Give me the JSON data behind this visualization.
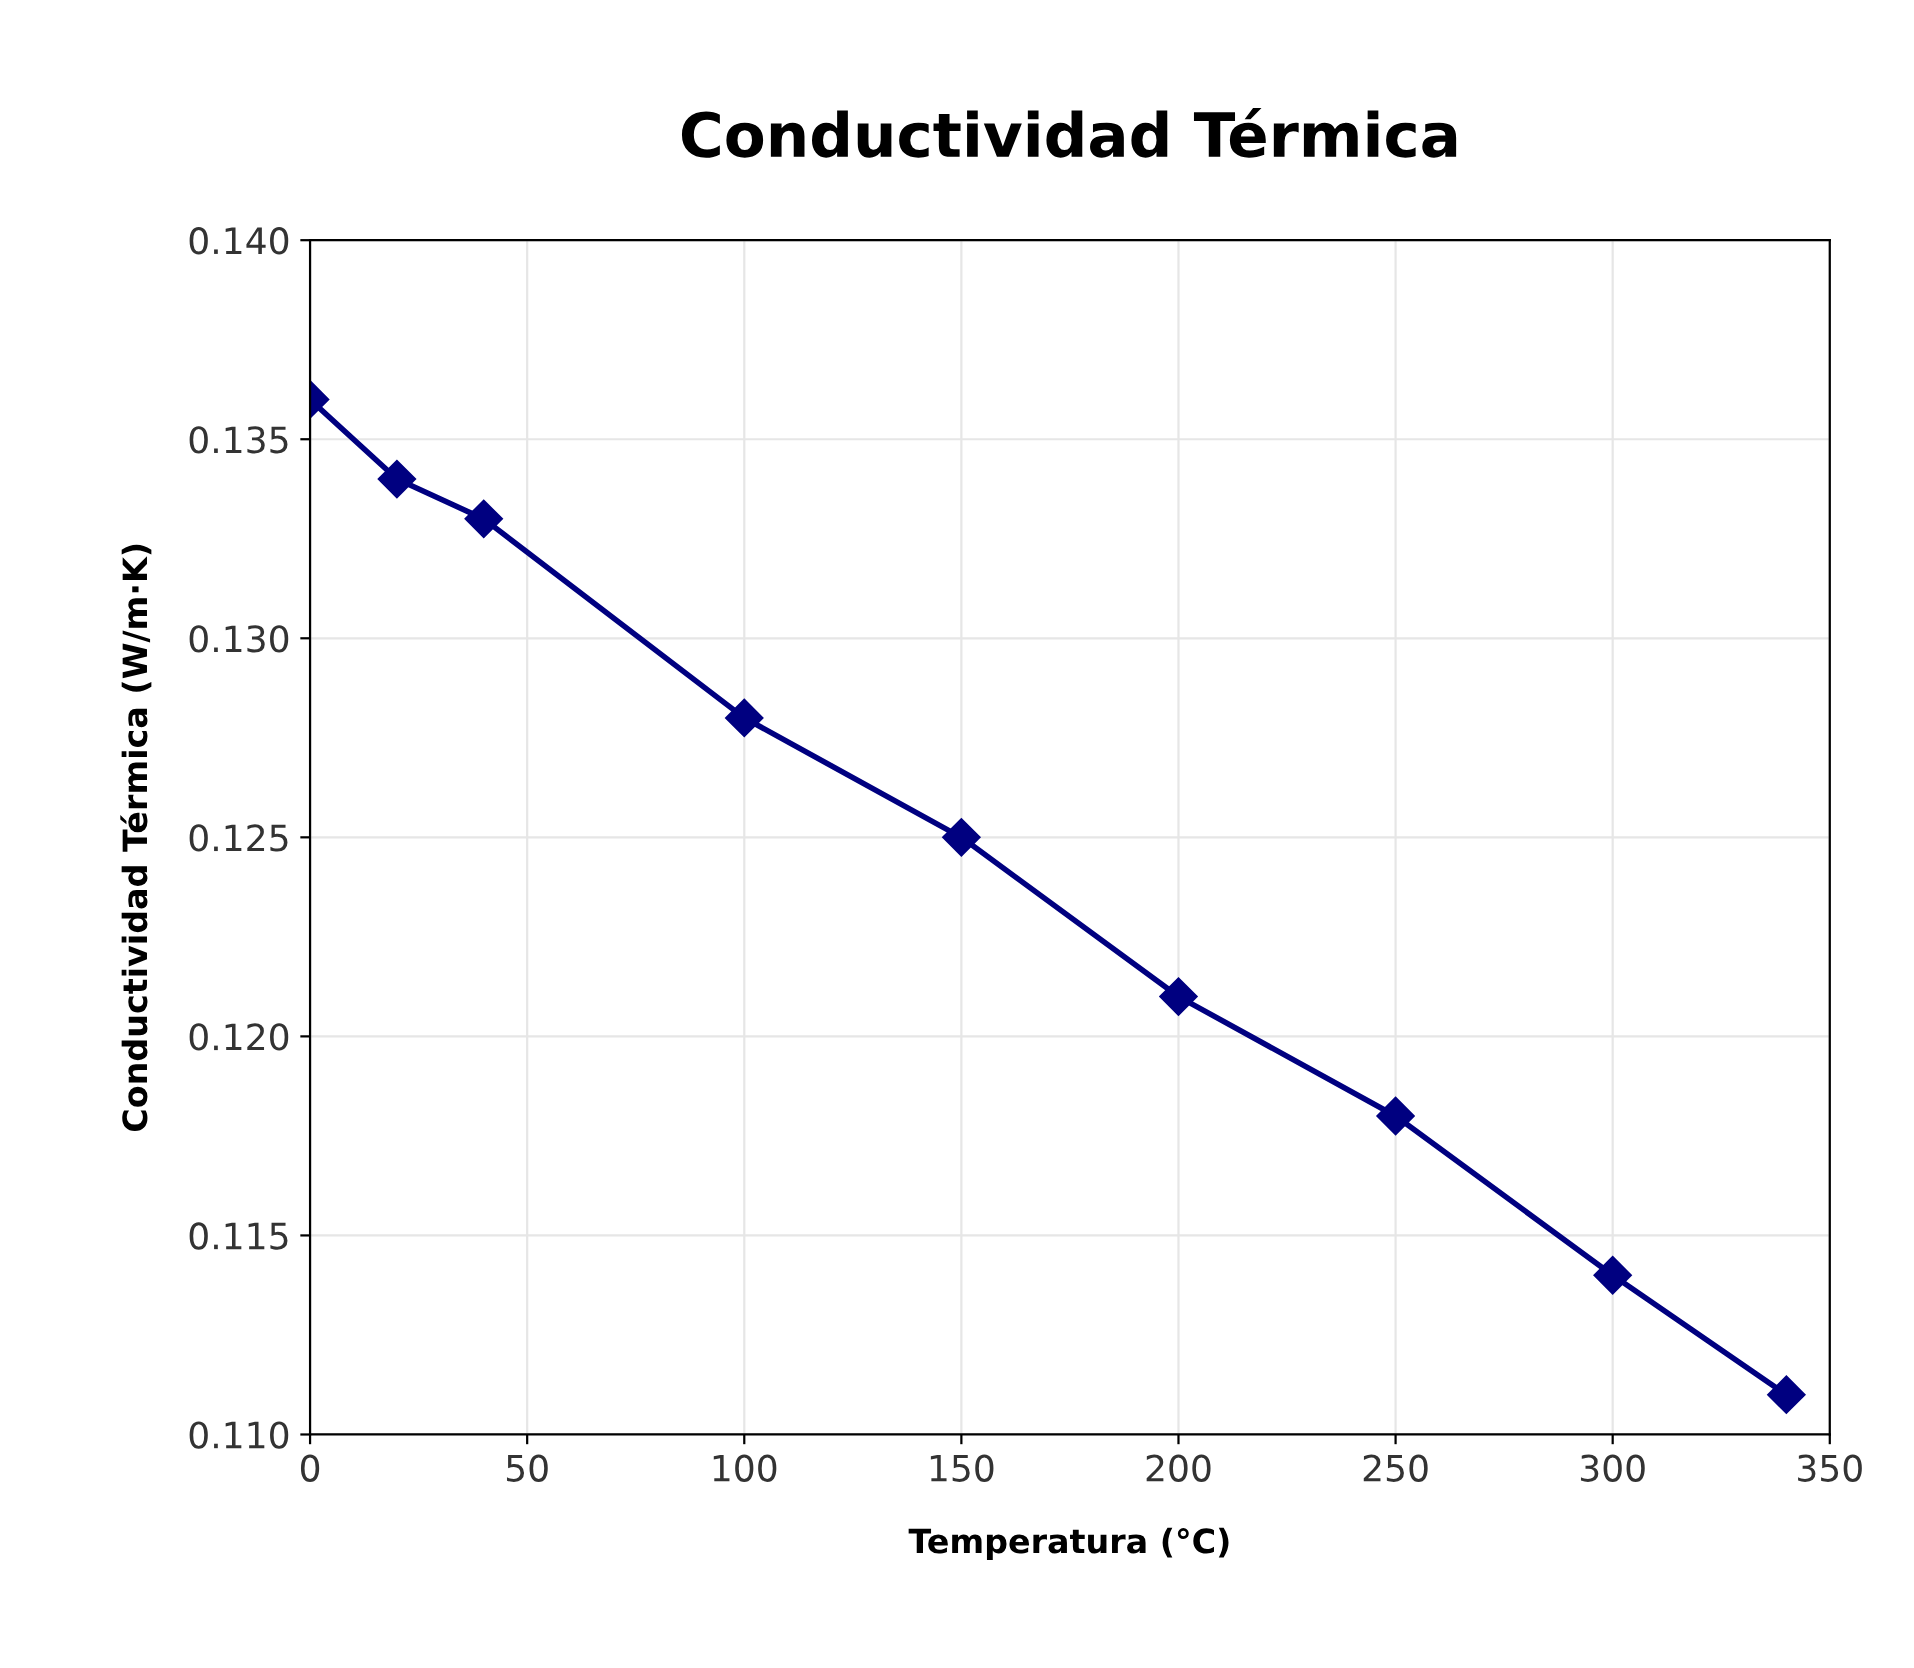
{
  "chart_data": {
    "type": "line",
    "title": "Conductividad Térmica",
    "xlabel": "Temperatura (°C)",
    "ylabel": "Conductividad Térmica (W/m·K)",
    "x": [
      0,
      20,
      40,
      100,
      150,
      200,
      250,
      300,
      340
    ],
    "series": [
      {
        "color": "#000080",
        "values": [
          0.136,
          0.134,
          0.133,
          0.128,
          0.125,
          0.121,
          0.118,
          0.114,
          0.111
        ]
      }
    ],
    "xlim": [
      0,
      350
    ],
    "xticks": [
      0,
      50,
      100,
      150,
      200,
      250,
      300,
      350
    ],
    "ylim": [
      0.11,
      0.14
    ],
    "yticks": [
      {
        "value": 0.11,
        "label": "0.110"
      },
      {
        "value": 0.115,
        "label": "0.115"
      },
      {
        "value": 0.12,
        "label": "0.120"
      },
      {
        "value": 0.125,
        "label": "0.125"
      },
      {
        "value": 0.13,
        "label": "0.130"
      },
      {
        "value": 0.135,
        "label": "0.135"
      },
      {
        "value": 0.14,
        "label": "0.140"
      }
    ],
    "grid": true,
    "marker": "diamond",
    "line_style": "solid"
  }
}
